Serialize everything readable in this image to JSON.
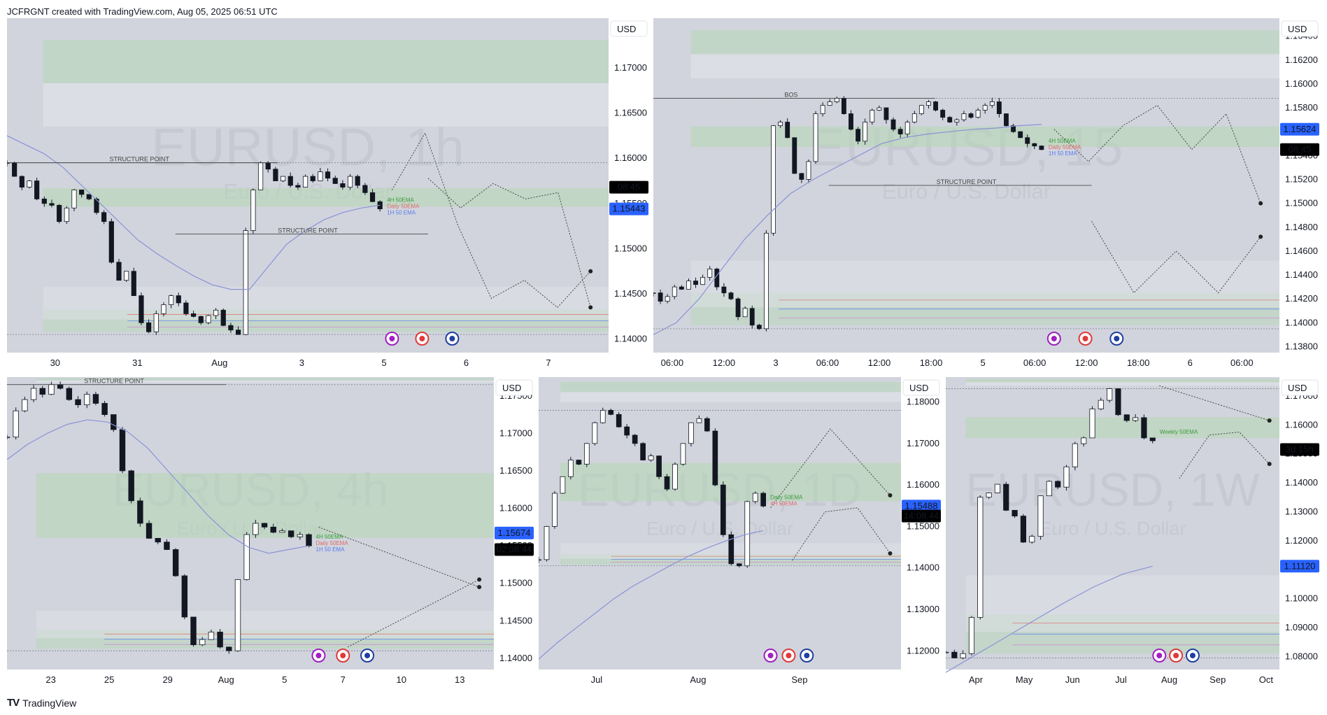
{
  "header": {
    "text": "JCFRGNT created with TradingView.com, Aug 05, 2025 06:51 UTC"
  },
  "footer": {
    "logo": "TV",
    "text": "TradingView"
  },
  "colors": {
    "plot_bg": "#d1d4dd",
    "candle": "#131722",
    "ema_line": "#8a93d6",
    "green_zone": "#b6d7b6",
    "white_zone": "#e3e5ea",
    "price_tag_blue": "#2962ff",
    "price_tag_black": "#000000"
  },
  "chart_data": [
    {
      "type": "line",
      "title": "EURUSD, 1h",
      "subtitle": "Euro / U.S. Dollar",
      "currency": "USD",
      "x_ticks": [
        "30",
        "31",
        "Aug",
        "3",
        "5",
        "6",
        "7"
      ],
      "y_ticks": [
        "1.17000",
        "1.16500",
        "1.16000",
        "1.15500",
        "1.15000",
        "1.14500",
        "1.14000"
      ],
      "ylim": [
        1.1385,
        1.1755
      ],
      "price_tags": [
        {
          "label": "08:45",
          "value": 1.1568,
          "style": "black"
        },
        {
          "label": "1.15443",
          "value": 1.1544,
          "style": "blue"
        }
      ],
      "structure_labels": [
        "STRUCTURE POINT",
        "STRUCTURE POINT"
      ],
      "zone_labels": [
        "4H 50EMA",
        "Daily 50EMA",
        "1H 50 EMA"
      ],
      "price_series": [
        1.1595,
        1.158,
        1.1568,
        1.1575,
        1.1555,
        1.155,
        1.1548,
        1.153,
        1.1545,
        1.1565,
        1.156,
        1.1555,
        1.154,
        1.153,
        1.1485,
        1.1465,
        1.1475,
        1.1448,
        1.1418,
        1.1408,
        1.1428,
        1.1438,
        1.1448,
        1.144,
        1.1428,
        1.1425,
        1.1418,
        1.1426,
        1.1432,
        1.1415,
        1.141,
        1.1405,
        1.152,
        1.1565,
        1.1595,
        1.1588,
        1.1575,
        1.158,
        1.157,
        1.1568,
        1.158,
        1.1575,
        1.1585,
        1.1578,
        1.1572,
        1.1568,
        1.158,
        1.157,
        1.1562,
        1.1552,
        1.1544
      ],
      "ema_series": [
        1.1625,
        1.1615,
        1.1605,
        1.159,
        1.157,
        1.155,
        1.153,
        1.151,
        1.1495,
        1.1482,
        1.147,
        1.146,
        1.1455,
        1.1455,
        1.148,
        1.1505,
        1.152,
        1.1532,
        1.154,
        1.1545,
        1.1548
      ],
      "projection": [
        1.1565,
        1.1628,
        1.1525,
        1.1445,
        1.1465,
        1.1435,
        1.1475
      ],
      "projection2": [
        1.1578,
        1.1545,
        1.1572,
        1.1555,
        1.1562,
        1.1435
      ]
    },
    {
      "type": "line",
      "title": "EURUSD, 15",
      "subtitle": "Euro / U.S. Dollar",
      "currency": "USD",
      "x_ticks": [
        "06:00",
        "12:00",
        "3",
        "06:00",
        "12:00",
        "18:00",
        "5",
        "06:00",
        "12:00",
        "18:00",
        "6",
        "06:00"
      ],
      "y_ticks": [
        "1.16400",
        "1.16200",
        "1.16000",
        "1.15800",
        "1.15600",
        "1.15400",
        "1.15200",
        "1.15000",
        "1.14800",
        "1.14600",
        "1.14400",
        "1.14200",
        "1.14000",
        "1.13800"
      ],
      "ylim": [
        1.1375,
        1.1655
      ],
      "price_tags": [
        {
          "label": "1.15624",
          "value": 1.1562,
          "style": "blue"
        },
        {
          "label": "08:45",
          "value": 1.1545,
          "style": "black"
        }
      ],
      "structure_labels": [
        "BOS",
        "STRUCTURE POINT"
      ],
      "zone_labels": [
        "4H 50EMA",
        "Daily 50EMA",
        "1H 50 EMA"
      ],
      "price_series": [
        1.1425,
        1.1418,
        1.1422,
        1.143,
        1.1428,
        1.1435,
        1.1432,
        1.1438,
        1.1445,
        1.143,
        1.1425,
        1.142,
        1.1405,
        1.1412,
        1.1398,
        1.1395,
        1.1475,
        1.1565,
        1.1568,
        1.1555,
        1.1525,
        1.152,
        1.1535,
        1.1575,
        1.1582,
        1.1585,
        1.1588,
        1.1575,
        1.1562,
        1.1552,
        1.1568,
        1.1578,
        1.158,
        1.157,
        1.1562,
        1.1558,
        1.1568,
        1.1575,
        1.1582,
        1.1585,
        1.1578,
        1.1572,
        1.1568,
        1.157,
        1.1575,
        1.1572,
        1.1578,
        1.1582,
        1.1585,
        1.1575,
        1.1565,
        1.156,
        1.1555,
        1.155,
        1.1548,
        1.1545
      ],
      "ema_series": [
        1.139,
        1.14,
        1.142,
        1.1445,
        1.147,
        1.149,
        1.1508,
        1.152,
        1.153,
        1.154,
        1.155,
        1.1555,
        1.1558,
        1.156,
        1.1562,
        1.1563,
        1.1565,
        1.1566
      ],
      "projection": [
        1.1562,
        1.1535,
        1.1565,
        1.1582,
        1.1545,
        1.1575,
        1.15
      ],
      "projection2": [
        1.1485,
        1.1425,
        1.146,
        1.1425,
        1.1472
      ]
    },
    {
      "type": "line",
      "title": "EURUSD, 4h",
      "subtitle": "Euro / U.S. Dollar",
      "currency": "USD",
      "x_ticks": [
        "23",
        "25",
        "29",
        "Aug",
        "5",
        "7",
        "10",
        "13"
      ],
      "y_ticks": [
        "1.17500",
        "1.17000",
        "1.16500",
        "1.16000",
        "1.15500",
        "1.15000",
        "1.14500",
        "1.14000"
      ],
      "ylim": [
        1.1385,
        1.1775
      ],
      "price_tags": [
        {
          "label": "1.15674",
          "value": 1.1567,
          "style": "blue"
        },
        {
          "label": "02:08:44",
          "value": 1.1545,
          "style": "black"
        }
      ],
      "structure_labels": [
        "STRUCTURE POINT"
      ],
      "zone_labels": [
        "4H 50EMA",
        "Daily 50EMA",
        "1H 50 EMA"
      ],
      "price_series": [
        1.1695,
        1.173,
        1.1745,
        1.176,
        1.1752,
        1.1765,
        1.176,
        1.1745,
        1.1738,
        1.1752,
        1.174,
        1.1725,
        1.1705,
        1.165,
        1.161,
        1.158,
        1.156,
        1.1555,
        1.1545,
        1.151,
        1.1455,
        1.1418,
        1.1425,
        1.1435,
        1.1415,
        1.141,
        1.1505,
        1.1565,
        1.158,
        1.1575,
        1.1568,
        1.157,
        1.1562,
        1.1565,
        1.155
      ],
      "ema_series": [
        1.1665,
        1.1685,
        1.17,
        1.1712,
        1.1718,
        1.1715,
        1.1702,
        1.168,
        1.165,
        1.162,
        1.159,
        1.1565,
        1.1548,
        1.154,
        1.1545,
        1.155
      ],
      "projection": [
        1.1575,
        1.1495
      ],
      "projection2": [
        1.1415,
        1.1505
      ]
    },
    {
      "type": "line",
      "title": "EURUSD, 1D",
      "subtitle": "Euro / U.S. Dollar",
      "currency": "USD",
      "x_ticks": [
        "Jul",
        "Aug",
        "Sep"
      ],
      "y_ticks": [
        "1.18000",
        "1.17000",
        "1.16000",
        "1.15000",
        "1.14000",
        "1.13000",
        "1.12000"
      ],
      "ylim": [
        1.1155,
        1.186
      ],
      "price_tags": [
        {
          "label": "1.15488",
          "value": 1.1549,
          "style": "blue"
        },
        {
          "label": "14:08:44",
          "value": 1.1525,
          "style": "black"
        }
      ],
      "structure_labels": [],
      "zone_labels": [
        "Daily 50EMA",
        "4H 50EMA"
      ],
      "price_series": [
        1.142,
        1.15,
        1.158,
        1.162,
        1.166,
        1.165,
        1.17,
        1.175,
        1.178,
        1.177,
        1.174,
        1.172,
        1.17,
        1.166,
        1.167,
        1.162,
        1.159,
        1.165,
        1.17,
        1.175,
        1.176,
        1.173,
        1.16,
        1.148,
        1.141,
        1.1405,
        1.156,
        1.158,
        1.1549
      ],
      "ema_series": [
        1.118,
        1.122,
        1.1255,
        1.129,
        1.1325,
        1.1355,
        1.138,
        1.1405,
        1.1428,
        1.1448,
        1.1465,
        1.148,
        1.149
      ],
      "projection": [
        1.1545,
        1.1735,
        1.1575
      ],
      "projection2": [
        1.1418,
        1.1535,
        1.1545,
        1.1435
      ]
    },
    {
      "type": "line",
      "title": "EURUSD, 1W",
      "subtitle": "Euro / U.S. Dollar",
      "currency": "USD",
      "x_ticks": [
        "Apr",
        "May",
        "Jun",
        "Jul",
        "Aug",
        "Sep",
        "Oct"
      ],
      "y_ticks": [
        "1.17000",
        "1.16000",
        "1.15000",
        "1.14000",
        "1.13000",
        "1.12000",
        "1.11000",
        "1.10000",
        "1.09000",
        "1.08000"
      ],
      "ylim": [
        1.0755,
        1.1765
      ],
      "price_tags": [
        {
          "label": "3d 15h",
          "value": 1.1515,
          "style": "black"
        },
        {
          "label": "1.11120",
          "value": 1.1112,
          "style": "blue"
        }
      ],
      "structure_labels": [],
      "zone_labels": [
        "Weekly 50EMA"
      ],
      "price_series": [
        1.0815,
        1.0795,
        1.081,
        1.0935,
        1.135,
        1.1365,
        1.1395,
        1.1305,
        1.1285,
        1.1195,
        1.1215,
        1.1355,
        1.1405,
        1.1385,
        1.1455,
        1.1535,
        1.1555,
        1.1655,
        1.1685,
        1.1725,
        1.1635,
        1.1615,
        1.1625,
        1.1555,
        1.1545
      ],
      "ema_series": [
        1.0745,
        1.0805,
        1.0865,
        1.0925,
        1.0985,
        1.104,
        1.1085,
        1.1112
      ],
      "projection": [
        1.1735,
        1.1615
      ],
      "projection2": [
        1.1415,
        1.1565,
        1.1575,
        1.1465
      ]
    }
  ]
}
